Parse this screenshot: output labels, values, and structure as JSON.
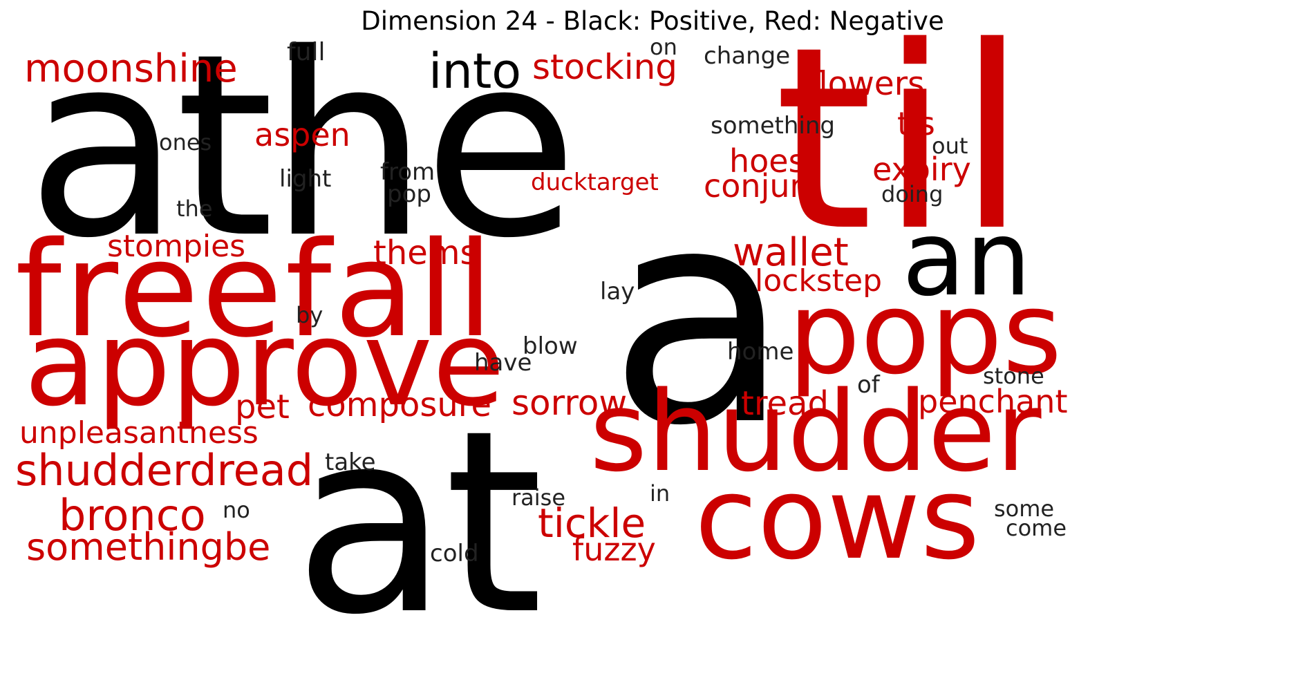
{
  "title": "Dimension 24 - Black: Positive, Red: Negative",
  "colors": {
    "positive": "#000000",
    "negative": "#cc0000"
  },
  "words": [
    {
      "text": "athe",
      "sentiment": "positive"
    },
    {
      "text": "til",
      "sentiment": "negative"
    },
    {
      "text": "a",
      "sentiment": "positive"
    },
    {
      "text": "at",
      "sentiment": "positive"
    },
    {
      "text": "an",
      "sentiment": "positive"
    },
    {
      "text": "freefall",
      "sentiment": "negative"
    },
    {
      "text": "approve",
      "sentiment": "negative"
    },
    {
      "text": "pops",
      "sentiment": "negative"
    },
    {
      "text": "shudder",
      "sentiment": "negative"
    },
    {
      "text": "cows",
      "sentiment": "negative"
    },
    {
      "text": "into",
      "sentiment": "positive"
    },
    {
      "text": "moonshine",
      "sentiment": "negative"
    },
    {
      "text": "stocking",
      "sentiment": "negative"
    },
    {
      "text": "flowers",
      "sentiment": "negative"
    },
    {
      "text": "tis",
      "sentiment": "negative"
    },
    {
      "text": "aspen",
      "sentiment": "negative"
    },
    {
      "text": "hoes",
      "sentiment": "negative"
    },
    {
      "text": "expiry",
      "sentiment": "negative"
    },
    {
      "text": "conjure",
      "sentiment": "negative"
    },
    {
      "text": "ducktarget",
      "sentiment": "negative"
    },
    {
      "text": "stompies",
      "sentiment": "negative"
    },
    {
      "text": "thems",
      "sentiment": "negative"
    },
    {
      "text": "wallet",
      "sentiment": "negative"
    },
    {
      "text": "lockstep",
      "sentiment": "negative"
    },
    {
      "text": "pet",
      "sentiment": "negative"
    },
    {
      "text": "composure",
      "sentiment": "negative"
    },
    {
      "text": "sorrow",
      "sentiment": "negative"
    },
    {
      "text": "tread",
      "sentiment": "negative"
    },
    {
      "text": "penchant",
      "sentiment": "negative"
    },
    {
      "text": "unpleasantness",
      "sentiment": "negative"
    },
    {
      "text": "shudderdread",
      "sentiment": "negative"
    },
    {
      "text": "bronco",
      "sentiment": "negative"
    },
    {
      "text": "somethingbe",
      "sentiment": "negative"
    },
    {
      "text": "tickle",
      "sentiment": "negative"
    },
    {
      "text": "fuzzy",
      "sentiment": "negative"
    },
    {
      "text": "full",
      "sentiment": "positive"
    },
    {
      "text": "on",
      "sentiment": "positive"
    },
    {
      "text": "change",
      "sentiment": "positive"
    },
    {
      "text": "something",
      "sentiment": "positive"
    },
    {
      "text": "out",
      "sentiment": "positive"
    },
    {
      "text": "ones",
      "sentiment": "positive"
    },
    {
      "text": "light",
      "sentiment": "positive"
    },
    {
      "text": "from",
      "sentiment": "positive"
    },
    {
      "text": "pop",
      "sentiment": "positive"
    },
    {
      "text": "doing",
      "sentiment": "positive"
    },
    {
      "text": "the",
      "sentiment": "positive"
    },
    {
      "text": "lay",
      "sentiment": "positive"
    },
    {
      "text": "by",
      "sentiment": "positive"
    },
    {
      "text": "blow",
      "sentiment": "positive"
    },
    {
      "text": "have",
      "sentiment": "positive"
    },
    {
      "text": "home",
      "sentiment": "positive"
    },
    {
      "text": "stone",
      "sentiment": "positive"
    },
    {
      "text": "of",
      "sentiment": "positive"
    },
    {
      "text": "take",
      "sentiment": "positive"
    },
    {
      "text": "raise",
      "sentiment": "positive"
    },
    {
      "text": "in",
      "sentiment": "positive"
    },
    {
      "text": "no",
      "sentiment": "positive"
    },
    {
      "text": "cold",
      "sentiment": "positive"
    },
    {
      "text": "some",
      "sentiment": "positive"
    },
    {
      "text": "come",
      "sentiment": "positive"
    }
  ]
}
